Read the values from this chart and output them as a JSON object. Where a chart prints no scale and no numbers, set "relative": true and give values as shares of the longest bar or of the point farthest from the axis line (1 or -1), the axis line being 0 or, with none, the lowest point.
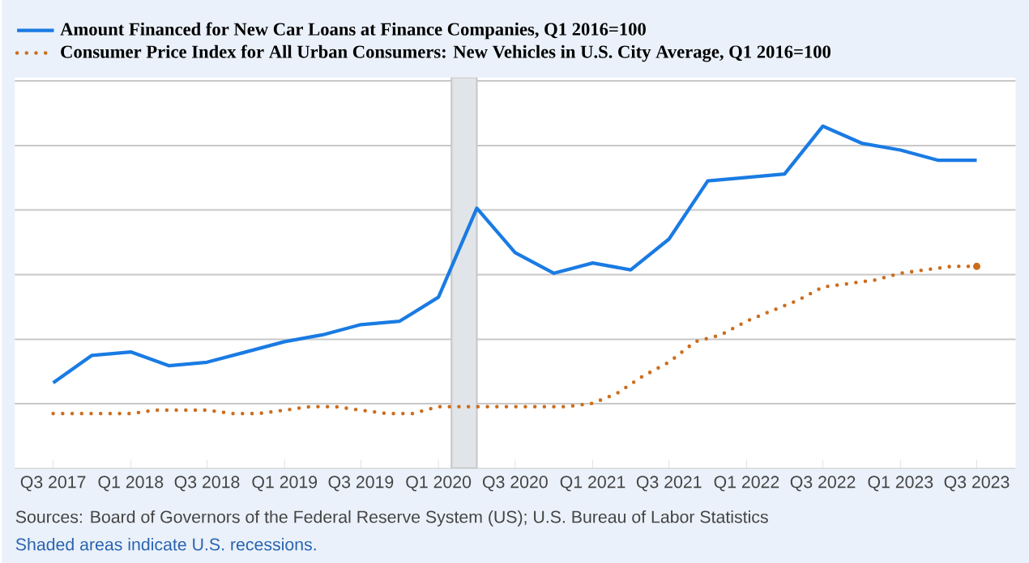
{
  "chart_data": {
    "type": "line",
    "relative": true,
    "grid": "y",
    "legend": "top left",
    "xlim": [
      "2017-04-01",
      "2023-10-01"
    ],
    "xticks": [
      {
        "value": "2017-07-01",
        "label": "Q3 2017"
      },
      {
        "value": "2018-01-01",
        "label": "Q1 2018"
      },
      {
        "value": "2018-07-01",
        "label": "Q3 2018"
      },
      {
        "value": "2019-01-01",
        "label": "Q1 2019"
      },
      {
        "value": "2019-07-01",
        "label": "Q3 2019"
      },
      {
        "value": "2020-01-01",
        "label": "Q1 2020"
      },
      {
        "value": "2020-07-01",
        "label": "Q3 2020"
      },
      {
        "value": "2021-01-01",
        "label": "Q1 2021"
      },
      {
        "value": "2021-07-01",
        "label": "Q3 2021"
      },
      {
        "value": "2022-01-01",
        "label": "Q1 2022"
      },
      {
        "value": "2022-07-01",
        "label": "Q3 2022"
      },
      {
        "value": "2023-01-01",
        "label": "Q1 2023"
      },
      {
        "value": "2023-07-01",
        "label": "Q3 2023"
      }
    ],
    "series": [
      {
        "name": "Amount Financed for New Car Loans at Finance Companies, Q1 2016=100",
        "color": "#1a7be3",
        "line_style": "solid",
        "x": [
          "2017-07-01",
          "2017-10-01",
          "2018-01-01",
          "2018-04-01",
          "2018-07-01",
          "2018-10-01",
          "2019-01-01",
          "2019-04-01",
          "2019-07-01",
          "2019-10-01",
          "2020-01-01",
          "2020-04-01",
          "2020-07-01",
          "2020-10-01",
          "2021-01-01",
          "2021-04-01",
          "2021-07-01",
          "2021-10-01",
          "2022-01-01",
          "2022-04-01",
          "2022-07-01",
          "2022-10-01",
          "2023-01-01",
          "2023-04-01",
          "2023-07-01"
        ],
        "values": [
          0.25,
          0.33,
          0.34,
          0.3,
          0.31,
          0.34,
          0.37,
          0.39,
          0.42,
          0.43,
          0.5,
          0.76,
          0.63,
          0.57,
          0.6,
          0.58,
          0.67,
          0.84,
          0.85,
          0.86,
          1.0,
          0.95,
          0.93,
          0.9,
          0.9
        ]
      },
      {
        "name": "Consumer Price Index for All Urban Consumers: New Vehicles in U.S. City Average, Q1 2016=100",
        "color": "#cc6d1e",
        "line_style": "dotted",
        "x": [
          "2017-07-01",
          "2017-09-01",
          "2017-11-01",
          "2018-01-01",
          "2018-03-01",
          "2018-05-01",
          "2018-07-01",
          "2018-09-01",
          "2018-11-01",
          "2019-01-01",
          "2019-03-01",
          "2019-05-01",
          "2019-07-01",
          "2019-09-01",
          "2019-11-01",
          "2020-01-01",
          "2020-03-01",
          "2020-05-01",
          "2020-07-01",
          "2020-09-01",
          "2020-11-01",
          "2021-01-01",
          "2021-03-01",
          "2021-05-01",
          "2021-07-01",
          "2021-09-01",
          "2021-11-01",
          "2022-01-01",
          "2022-03-01",
          "2022-05-01",
          "2022-07-01",
          "2022-09-01",
          "2022-11-01",
          "2023-01-01",
          "2023-03-01",
          "2023-05-01",
          "2023-07-01"
        ],
        "values": [
          0.16,
          0.16,
          0.16,
          0.16,
          0.17,
          0.17,
          0.17,
          0.16,
          0.16,
          0.17,
          0.18,
          0.18,
          0.17,
          0.16,
          0.16,
          0.18,
          0.18,
          0.18,
          0.18,
          0.18,
          0.18,
          0.19,
          0.22,
          0.27,
          0.31,
          0.37,
          0.39,
          0.43,
          0.46,
          0.49,
          0.53,
          0.54,
          0.55,
          0.57,
          0.58,
          0.59,
          0.59
        ]
      }
    ],
    "bands": [
      {
        "axis": "x",
        "from": "2020-02-01",
        "to": "2020-04-01",
        "color": "#e1e5ea"
      }
    ],
    "annotations": [
      "Sources: Board of Governors of the Federal Reserve System (US); U.S. Bureau of Labor Statistics",
      "Shaded areas indicate U.S. recessions."
    ]
  }
}
